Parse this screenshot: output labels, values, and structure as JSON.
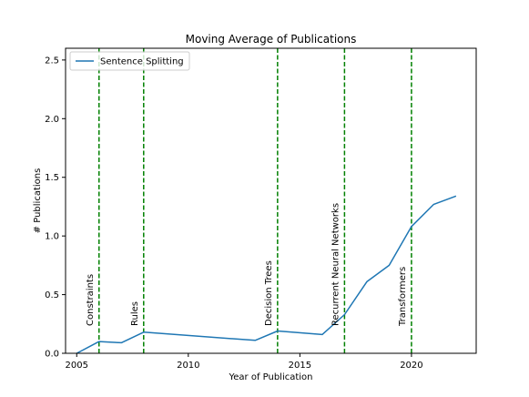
{
  "chart_data": {
    "type": "line",
    "title": "Moving Average of Publications",
    "xlabel": "Year of Publication",
    "ylabel": "# Publications",
    "xlim": [
      2004.5,
      2022.9
    ],
    "ylim": [
      0,
      2.6
    ],
    "x_ticks": [
      2005,
      2010,
      2015,
      2020
    ],
    "x_tick_labels": [
      "2005",
      "2010",
      "2015",
      "2020"
    ],
    "y_ticks": [
      0.0,
      0.5,
      1.0,
      1.5,
      2.0,
      2.5
    ],
    "y_tick_labels": [
      "0.0",
      "0.5",
      "1.0",
      "1.5",
      "2.0",
      "2.5"
    ],
    "grid": false,
    "legend_position": "top-left",
    "series": [
      {
        "name": "Sentence Splitting",
        "color": "#1f77b4",
        "x": [
          2005,
          2006,
          2007,
          2008,
          2013,
          2014,
          2016,
          2017,
          2018,
          2019,
          2020,
          2021,
          2022
        ],
        "values": [
          0.0,
          0.1,
          0.09,
          0.18,
          0.11,
          0.19,
          0.16,
          0.33,
          0.61,
          0.75,
          1.08,
          1.27,
          1.34
        ]
      }
    ],
    "annotations": [
      {
        "x": 2006,
        "label": "Constraints",
        "color": "#008000",
        "style": "dashed"
      },
      {
        "x": 2008,
        "label": "Rules",
        "color": "#008000",
        "style": "dashed"
      },
      {
        "x": 2014,
        "label": "Decision Trees",
        "color": "#008000",
        "style": "dashed"
      },
      {
        "x": 2017,
        "label": "Recurrent Neural Networks",
        "color": "#008000",
        "style": "dashed"
      },
      {
        "x": 2020,
        "label": "Transformers",
        "color": "#008000",
        "style": "dashed"
      }
    ]
  }
}
